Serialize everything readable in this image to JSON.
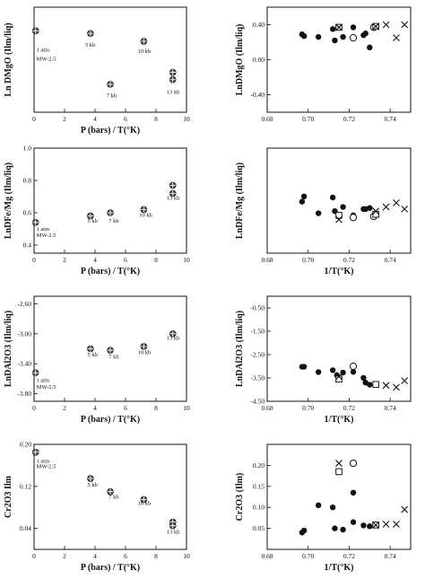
{
  "chart_data": [
    {
      "id": "p1",
      "type": "scatter",
      "title": "",
      "xlabel": "P (bars) / T(°K)",
      "ylabel": "Ln DMgO (Ilm/liq)",
      "xlim": [
        0,
        10
      ],
      "ylim": [
        0.22,
        0.42
      ],
      "xticks": [
        0,
        2,
        4,
        6,
        8,
        10
      ],
      "yticks": [],
      "series": [
        {
          "marker": "cross-circle",
          "x": [
            0.1,
            3.7,
            5.0,
            7.2,
            9.1,
            9.1
          ],
          "y": [
            0.375,
            0.37,
            0.273,
            0.355,
            0.296,
            0.282
          ]
        }
      ],
      "annotations": [
        {
          "text": "1 atm",
          "x": 0.15,
          "y": 0.335
        },
        {
          "text": "MW-2.5",
          "x": 0.15,
          "y": 0.318
        },
        {
          "text": "5 kb",
          "x": 3.35,
          "y": 0.345
        },
        {
          "text": "7 kb",
          "x": 4.75,
          "y": 0.248
        },
        {
          "text": "10 kb",
          "x": 6.8,
          "y": 0.333
        },
        {
          "text": "13 kb",
          "x": 8.7,
          "y": 0.255
        }
      ]
    },
    {
      "id": "p2",
      "type": "scatter",
      "title": "",
      "xlabel": "",
      "ylabel": "LnDMgO (Ilm/liq)",
      "xlim": [
        0.68,
        0.75
      ],
      "ylim": [
        -0.6,
        0.6
      ],
      "xticks": [
        0.68,
        0.7,
        0.72,
        0.74
      ],
      "yticks": [
        0.4,
        0.0,
        -0.4
      ],
      "series": [
        {
          "marker": "filled",
          "x": [
            0.697,
            0.698,
            0.705,
            0.712,
            0.713,
            0.717,
            0.722,
            0.727,
            0.728,
            0.73
          ],
          "y": [
            0.29,
            0.27,
            0.26,
            0.35,
            0.22,
            0.26,
            0.37,
            0.28,
            0.3,
            0.14
          ]
        },
        {
          "marker": "open",
          "x": [
            0.722,
            0.732
          ],
          "y": [
            0.25,
            0.37
          ]
        },
        {
          "marker": "square",
          "x": [
            0.715,
            0.733
          ],
          "y": [
            0.37,
            0.38
          ]
        },
        {
          "marker": "x",
          "x": [
            0.715,
            0.733,
            0.738,
            0.743,
            0.747
          ],
          "y": [
            0.37,
            0.38,
            0.4,
            0.25,
            0.4
          ]
        }
      ]
    },
    {
      "id": "p3",
      "type": "scatter",
      "title": "",
      "xlabel": "P (bars) / T(°K)",
      "ylabel": "LnDFe/Mg (Ilm/liq)",
      "xlim": [
        0,
        10
      ],
      "ylim": [
        0.35,
        1.0
      ],
      "xticks": [
        0,
        2,
        4,
        6,
        8,
        10
      ],
      "yticks": [
        1.0,
        0.8,
        0.6,
        0.4
      ],
      "series": [
        {
          "marker": "cross-circle",
          "x": [
            0.1,
            3.7,
            5.0,
            7.2,
            9.1,
            9.1
          ],
          "y": [
            0.54,
            0.58,
            0.6,
            0.62,
            0.77,
            0.72
          ]
        }
      ],
      "annotations": [
        {
          "text": "1 atm",
          "x": 0.15,
          "y": 0.49
        },
        {
          "text": "MW-2.5",
          "x": 0.15,
          "y": 0.45
        },
        {
          "text": "5 kb",
          "x": 3.5,
          "y": 0.54
        },
        {
          "text": "7 kb",
          "x": 4.9,
          "y": 0.54
        },
        {
          "text": "10 kb",
          "x": 6.9,
          "y": 0.575
        },
        {
          "text": "13 kb",
          "x": 8.7,
          "y": 0.68
        }
      ]
    },
    {
      "id": "p4",
      "type": "scatter",
      "title": "",
      "xlabel": "1/T(°K)",
      "ylabel": "LnDFe/Mg (Ilm/liq)",
      "xlim": [
        0.68,
        0.75
      ],
      "ylim": [
        0.2,
        1.2
      ],
      "xticks": [
        0.68,
        0.7,
        0.72,
        0.74
      ],
      "yticks": [],
      "series": [
        {
          "marker": "filled",
          "x": [
            0.697,
            0.698,
            0.705,
            0.712,
            0.713,
            0.717,
            0.722,
            0.727,
            0.728,
            0.73
          ],
          "y": [
            0.69,
            0.74,
            0.58,
            0.73,
            0.6,
            0.64,
            0.56,
            0.62,
            0.62,
            0.63
          ]
        },
        {
          "marker": "open",
          "x": [
            0.722,
            0.732
          ],
          "y": [
            0.54,
            0.55
          ]
        },
        {
          "marker": "square",
          "x": [
            0.715,
            0.733
          ],
          "y": [
            0.56,
            0.57
          ]
        },
        {
          "marker": "x",
          "x": [
            0.715,
            0.733,
            0.738,
            0.743,
            0.747
          ],
          "y": [
            0.52,
            0.6,
            0.64,
            0.68,
            0.62
          ]
        }
      ]
    },
    {
      "id": "p5",
      "type": "scatter",
      "title": "",
      "xlabel": "P (bars) / T(°K)",
      "ylabel": "LnDAl2O3 (Ilm/liq)",
      "xlim": [
        0,
        10
      ],
      "ylim": [
        -3.9,
        -2.5
      ],
      "xticks": [
        0,
        2,
        4,
        6,
        8,
        10
      ],
      "yticks": [
        -2.6,
        -3.0,
        -3.4,
        -3.8
      ],
      "series": [
        {
          "marker": "cross-circle",
          "x": [
            0.1,
            3.7,
            5.0,
            7.2,
            9.1
          ],
          "y": [
            -3.52,
            -3.2,
            -3.22,
            -3.17,
            -3.0
          ]
        }
      ],
      "annotations": [
        {
          "text": "1 atm",
          "x": 0.15,
          "y": -3.64
        },
        {
          "text": "MW-2.5",
          "x": 0.15,
          "y": -3.73
        },
        {
          "text": "5 kb",
          "x": 3.5,
          "y": -3.3
        },
        {
          "text": "7 kb",
          "x": 4.9,
          "y": -3.33
        },
        {
          "text": "10 kb",
          "x": 6.8,
          "y": -3.27
        },
        {
          "text": "13 kb",
          "x": 8.7,
          "y": -3.08
        }
      ]
    },
    {
      "id": "p6",
      "type": "scatter",
      "title": "",
      "xlabel": "1/T(°K)",
      "ylabel": "LnDAl2O3 (Ilm/liq)",
      "xlim": [
        0.68,
        0.75
      ],
      "ylim": [
        -4.5,
        0.0
      ],
      "xticks": [
        0.68,
        0.7,
        0.72,
        0.74
      ],
      "yticks": [
        -0.5,
        -1.5,
        -2.5,
        -3.5,
        -4.5
      ],
      "series": [
        {
          "marker": "filled",
          "x": [
            0.697,
            0.698,
            0.705,
            0.712,
            0.714,
            0.717,
            0.722,
            0.727,
            0.728,
            0.73
          ],
          "y": [
            -3.02,
            -3.02,
            -3.25,
            -3.17,
            -3.38,
            -3.27,
            -3.24,
            -3.5,
            -3.7,
            -3.79
          ]
        },
        {
          "marker": "open",
          "x": [
            0.722
          ],
          "y": [
            -3.0
          ]
        },
        {
          "marker": "square",
          "x": [
            0.715,
            0.733
          ],
          "y": [
            -3.55,
            -3.78
          ]
        },
        {
          "marker": "x",
          "x": [
            0.715,
            0.738,
            0.743,
            0.747
          ],
          "y": [
            -3.44,
            -3.82,
            -3.9,
            -3.62
          ]
        }
      ]
    },
    {
      "id": "p7",
      "type": "scatter",
      "title": "",
      "xlabel": "P (bars) / T(°K)",
      "ylabel": "Cr2O3 Ilm",
      "xlim": [
        0,
        10
      ],
      "ylim": [
        0.0,
        0.2
      ],
      "xticks": [
        0,
        2,
        4,
        6,
        8,
        10
      ],
      "yticks": [
        0.2,
        0.12,
        0.04
      ],
      "series": [
        {
          "marker": "cross-circle",
          "x": [
            0.1,
            3.7,
            5.0,
            7.2,
            9.1,
            9.1
          ],
          "y": [
            0.185,
            0.135,
            0.11,
            0.095,
            0.052,
            0.045
          ]
        }
      ],
      "annotations": [
        {
          "text": "1 atm",
          "x": 0.15,
          "y": 0.165
        },
        {
          "text": "MW-2.5",
          "x": 0.15,
          "y": 0.155
        },
        {
          "text": "5 kb",
          "x": 3.5,
          "y": 0.12
        },
        {
          "text": "7 kb",
          "x": 4.9,
          "y": 0.097
        },
        {
          "text": "10 kb",
          "x": 6.8,
          "y": 0.085
        },
        {
          "text": "13 kb",
          "x": 8.7,
          "y": 0.03
        }
      ]
    },
    {
      "id": "p8",
      "type": "scatter",
      "title": "",
      "xlabel": "1/T(°K)",
      "ylabel": "Cr2O3 (Ilm)",
      "xlim": [
        0.68,
        0.75
      ],
      "ylim": [
        0.0,
        0.25
      ],
      "xticks": [
        0.68,
        0.7,
        0.72,
        0.74
      ],
      "yticks": [
        0.2,
        0.15,
        0.1,
        0.05
      ],
      "series": [
        {
          "marker": "filled",
          "x": [
            0.697,
            0.698,
            0.705,
            0.712,
            0.713,
            0.717,
            0.722,
            0.722,
            0.727,
            0.73
          ],
          "y": [
            0.04,
            0.045,
            0.105,
            0.1,
            0.05,
            0.047,
            0.135,
            0.065,
            0.057,
            0.055
          ]
        },
        {
          "marker": "open",
          "x": [
            0.722
          ],
          "y": [
            0.205
          ]
        },
        {
          "marker": "square",
          "x": [
            0.715,
            0.733
          ],
          "y": [
            0.185,
            0.058
          ]
        },
        {
          "marker": "x",
          "x": [
            0.715,
            0.733,
            0.738,
            0.743,
            0.747
          ],
          "y": [
            0.205,
            0.058,
            0.06,
            0.06,
            0.095
          ]
        }
      ]
    }
  ]
}
